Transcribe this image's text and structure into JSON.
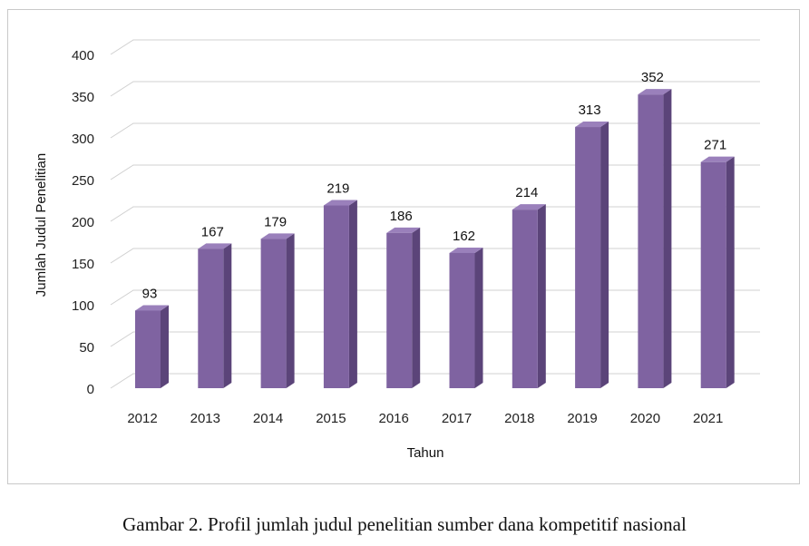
{
  "chart_data": {
    "type": "bar",
    "categories": [
      "2012",
      "2013",
      "2014",
      "2015",
      "2016",
      "2017",
      "2018",
      "2019",
      "2020",
      "2021"
    ],
    "values": [
      93,
      167,
      179,
      219,
      186,
      162,
      214,
      313,
      352,
      271
    ],
    "xlabel": "Tahun",
    "ylabel": "Jumlah Judul Penelitian",
    "ylim": [
      0,
      400
    ],
    "yticks": [
      0,
      50,
      100,
      150,
      200,
      250,
      300,
      350,
      400
    ],
    "grid": true,
    "legend": "none",
    "bar_color": "#7f63a1",
    "bar_side_color": "#5b4479",
    "bar_top_color": "#9a80bb"
  },
  "caption": "Gambar 2. Profil jumlah judul penelitian sumber dana kompetitif nasional"
}
